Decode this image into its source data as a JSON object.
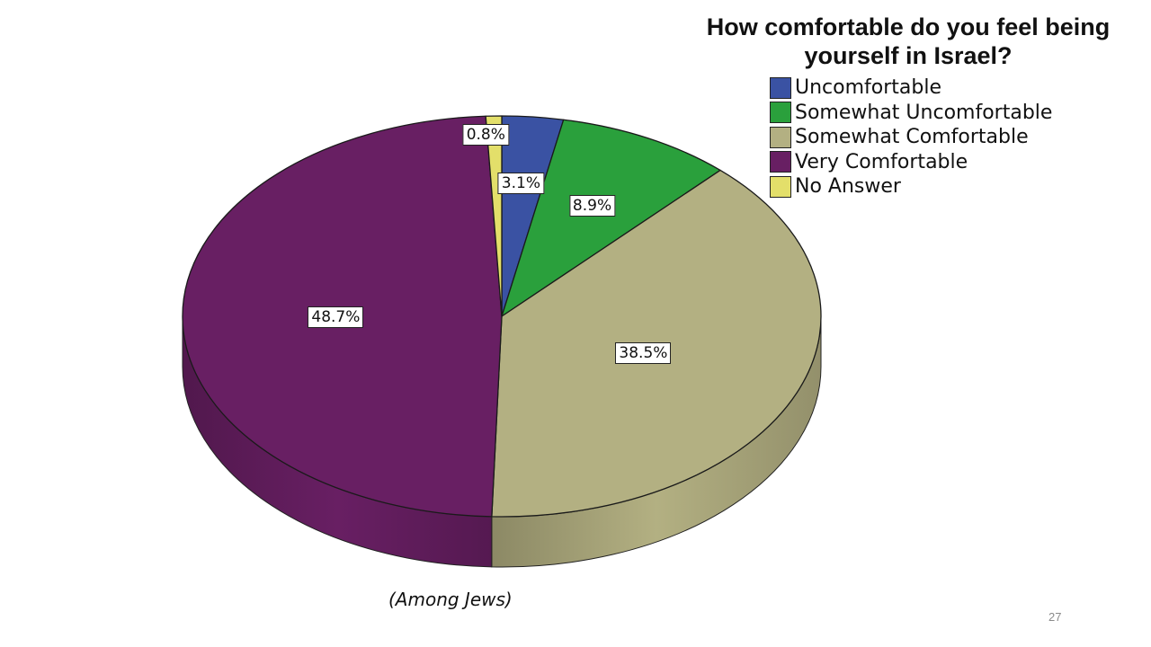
{
  "chart_data": {
    "type": "pie",
    "title": "How comfortable do you feel being yourself in Israel?",
    "categories": [
      "Uncomfortable",
      "Somewhat Uncomfortable",
      "Somewhat Comfortable",
      "Very Comfortable",
      "No Answer"
    ],
    "values": [
      3.1,
      8.9,
      38.5,
      48.7,
      0.8
    ],
    "labels": [
      "3.1%",
      "8.9%",
      "38.5%",
      "48.7%",
      "0.8%"
    ],
    "colors": [
      "#3a52a3",
      "#2aa03c",
      "#b3b082",
      "#681f63",
      "#e3df6a"
    ],
    "legend": "top-right",
    "style": "3d"
  },
  "caption": "(Among Jews)",
  "slide_number": "27"
}
